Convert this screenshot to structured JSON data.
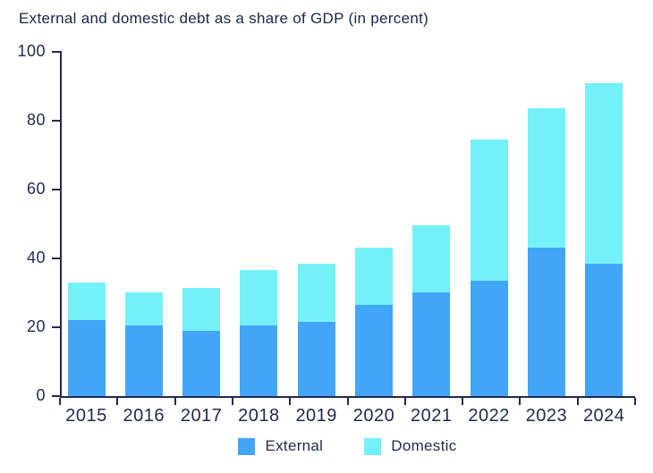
{
  "title": "External and domestic debt as a share of GDP (in percent)",
  "colors": {
    "external": "#42a5f7",
    "domestic": "#74f1f8",
    "axis": "#242a4e",
    "text": "#242a4e",
    "background": "#ffffff"
  },
  "chart_data": {
    "type": "bar",
    "stacked": true,
    "title": "External and domestic debt as a share of GDP (in percent)",
    "categories": [
      "2015",
      "2016",
      "2017",
      "2018",
      "2019",
      "2020",
      "2021",
      "2022",
      "2023",
      "2024"
    ],
    "series": [
      {
        "name": "External",
        "color": "#42a5f7",
        "values": [
          22,
          20.5,
          19,
          20.5,
          21.5,
          26.5,
          30,
          33.5,
          43,
          38.5
        ]
      },
      {
        "name": "Domestic",
        "color": "#74f1f8",
        "values": [
          11,
          9.5,
          12.5,
          16,
          17,
          16.5,
          19.5,
          41,
          40.5,
          52.5
        ]
      }
    ],
    "totals": [
      33,
      30,
      31.5,
      36.5,
      38.5,
      43,
      49.5,
      74.5,
      83.5,
      91
    ],
    "xlabel": "",
    "ylabel": "",
    "ylim": [
      0,
      100
    ],
    "yticks": [
      0,
      20,
      40,
      60,
      80,
      100
    ],
    "grid": false,
    "legend_position": "bottom"
  },
  "legend": {
    "items": [
      {
        "label": "External",
        "color": "#42a5f7"
      },
      {
        "label": "Domestic",
        "color": "#74f1f8"
      }
    ]
  }
}
